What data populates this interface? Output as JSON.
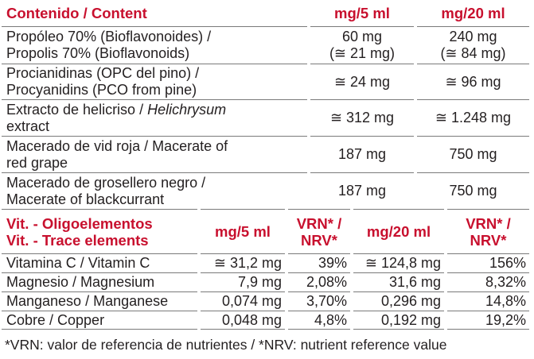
{
  "table1": {
    "header": [
      "Contenido / Content",
      "mg/5 ml",
      "mg/20 ml"
    ],
    "rows": [
      [
        [
          "Propóleo 70% (Bioflavonoides) /",
          "Propolis 70% (Bioflavonoids)"
        ],
        [
          "60 mg",
          "(≅ 21 mg)"
        ],
        [
          "240 mg",
          "(≅ 84 mg)"
        ]
      ],
      [
        [
          "Procianidinas (OPC del pino) /",
          "Procyanidins (PCO from pine)"
        ],
        [
          "≅ 24 mg"
        ],
        [
          "≅ 96 mg"
        ]
      ],
      [
        [
          [
            "Extracto de helicriso / ",
            "Helichrysum"
          ],
          "extract"
        ],
        [
          "≅ 312 mg"
        ],
        [
          "≅ 1.248 mg"
        ]
      ],
      [
        [
          "Macerado de vid roja / Macerate of",
          "red grape"
        ],
        [
          "187 mg"
        ],
        [
          "750 mg"
        ]
      ],
      [
        [
          "Macerado de grosellero negro /",
          "Macerate of blackcurrant"
        ],
        [
          "187 mg"
        ],
        [
          "750 mg"
        ]
      ]
    ]
  },
  "table2": {
    "header": [
      [
        "Vit. - Oligoelementos",
        "Vit. - Trace elements"
      ],
      [
        "mg/5 ml"
      ],
      [
        "VRN* /",
        "NRV*"
      ],
      [
        "mg/20 ml"
      ],
      [
        "VRN* /",
        "NRV*"
      ]
    ],
    "rows": [
      [
        "Vitamina C / Vitamin C",
        "≅ 31,2 mg",
        "39%",
        "≅ 124,8 mg",
        "156%"
      ],
      [
        "Magnesio / Magnesium",
        "7,9 mg",
        "2,08%",
        "31,6 mg",
        "8,32%"
      ],
      [
        "Manganeso / Manganese",
        "0,074 mg",
        "3,70%",
        "0,296 mg",
        "14,8%"
      ],
      [
        "Cobre / Copper",
        "0,048 mg",
        "4,8%",
        "0,192 mg",
        "19,2%"
      ]
    ]
  },
  "footnote": "*VRN: valor de referencia de nutrientes / *NRV: nutrient reference value"
}
